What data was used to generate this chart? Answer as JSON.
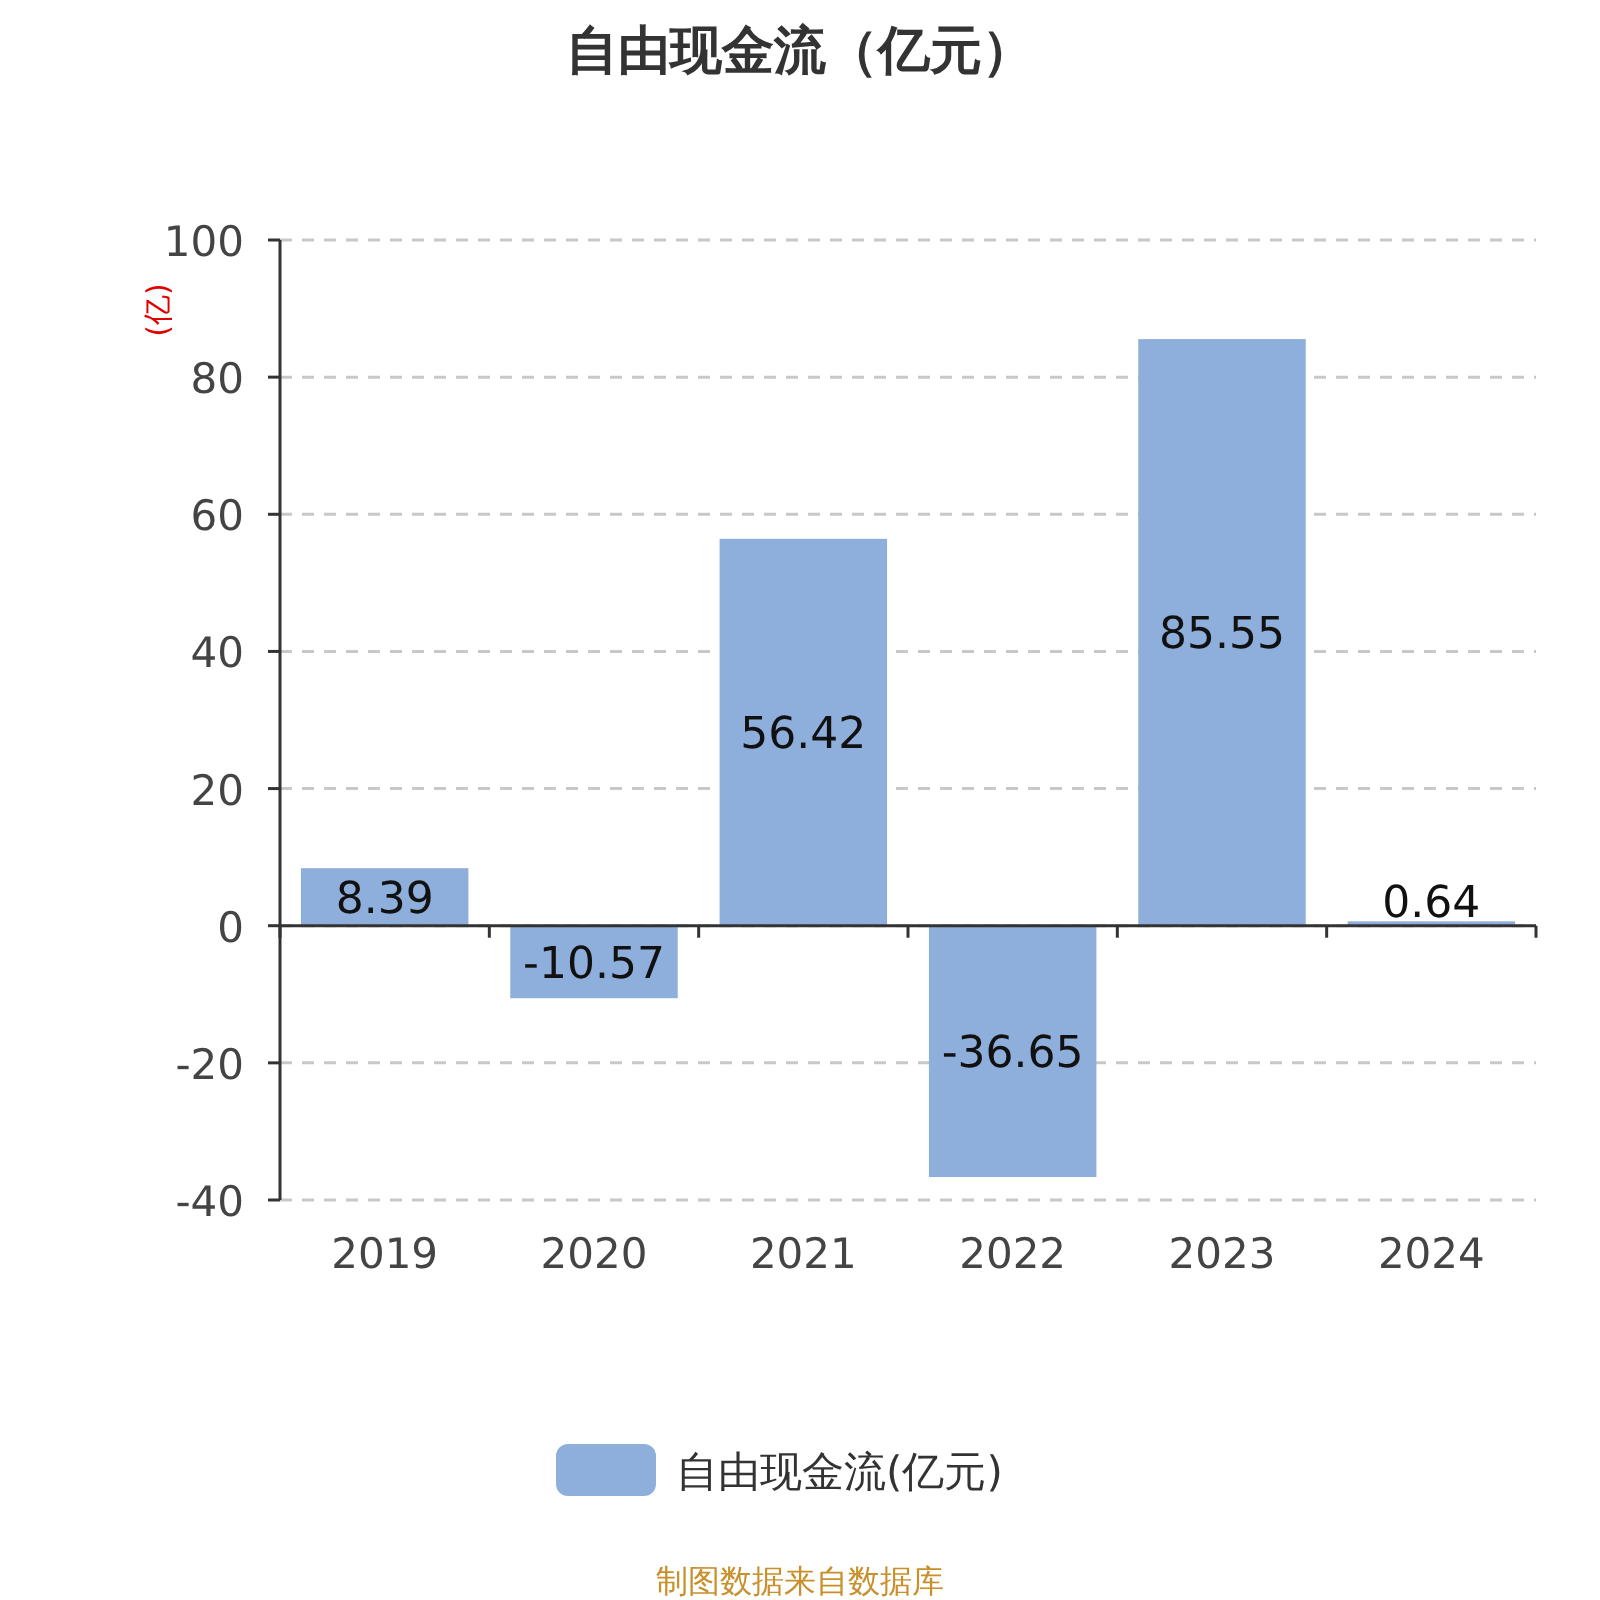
{
  "chart_data": {
    "type": "bar",
    "title": "自由现金流（亿元）",
    "ylabel": "(亿)",
    "categories": [
      "2019",
      "2020",
      "2021",
      "2022",
      "2023",
      "2024"
    ],
    "series": [
      {
        "name": "自由现金流(亿元)",
        "color": "#8eafdb",
        "values": [
          8.39,
          -10.57,
          56.42,
          -36.65,
          85.55,
          0.64
        ]
      }
    ],
    "data_labels": true,
    "ylim": [
      -40,
      100
    ],
    "yticks": [
      -40,
      -20,
      0,
      20,
      40,
      60,
      80,
      100
    ],
    "grid": "y",
    "legend": "bottom",
    "annotations": [
      "制图数据来自数据库"
    ]
  }
}
